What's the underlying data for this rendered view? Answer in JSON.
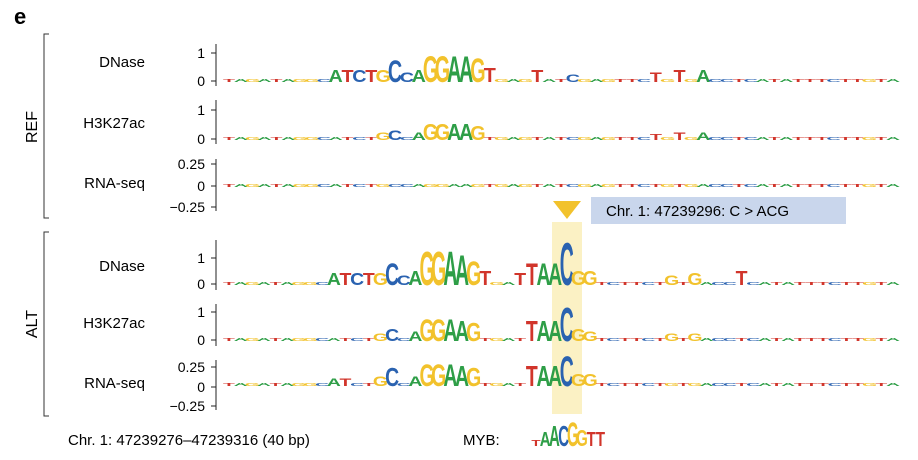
{
  "panel_label": "e",
  "groups": {
    "ref": {
      "label": "REF"
    },
    "alt": {
      "label": "ALT"
    }
  },
  "tracks": {
    "ref": [
      {
        "label": "DNase",
        "ticks": [
          "1",
          "0"
        ]
      },
      {
        "label": "H3K27ac",
        "ticks": [
          "1",
          "0"
        ]
      },
      {
        "label": "RNA-seq",
        "ticks": [
          "0.25",
          "0",
          "−0.25"
        ]
      }
    ],
    "alt": [
      {
        "label": "DNase",
        "ticks": [
          "1",
          "0"
        ]
      },
      {
        "label": "H3K27ac",
        "ticks": [
          "1",
          "0"
        ]
      },
      {
        "label": "RNA-seq",
        "ticks": [
          "0.25",
          "0",
          "−0.25"
        ]
      }
    ]
  },
  "variant": {
    "label": "Chr. 1: 47239296: C > ACG"
  },
  "footer": {
    "region": "Chr. 1: 47239276–47239316 (40 bp)",
    "motif_label": "MYB:",
    "motif_letters": "TAACGGTT"
  },
  "colors": {
    "A": "#2e9e47",
    "C": "#2a62b0",
    "G": "#f2c22c",
    "T": "#d1352b",
    "highlight": "#fbf1c4",
    "variant_box": "#c9d6ec",
    "marker": "#f2c22c"
  }
}
